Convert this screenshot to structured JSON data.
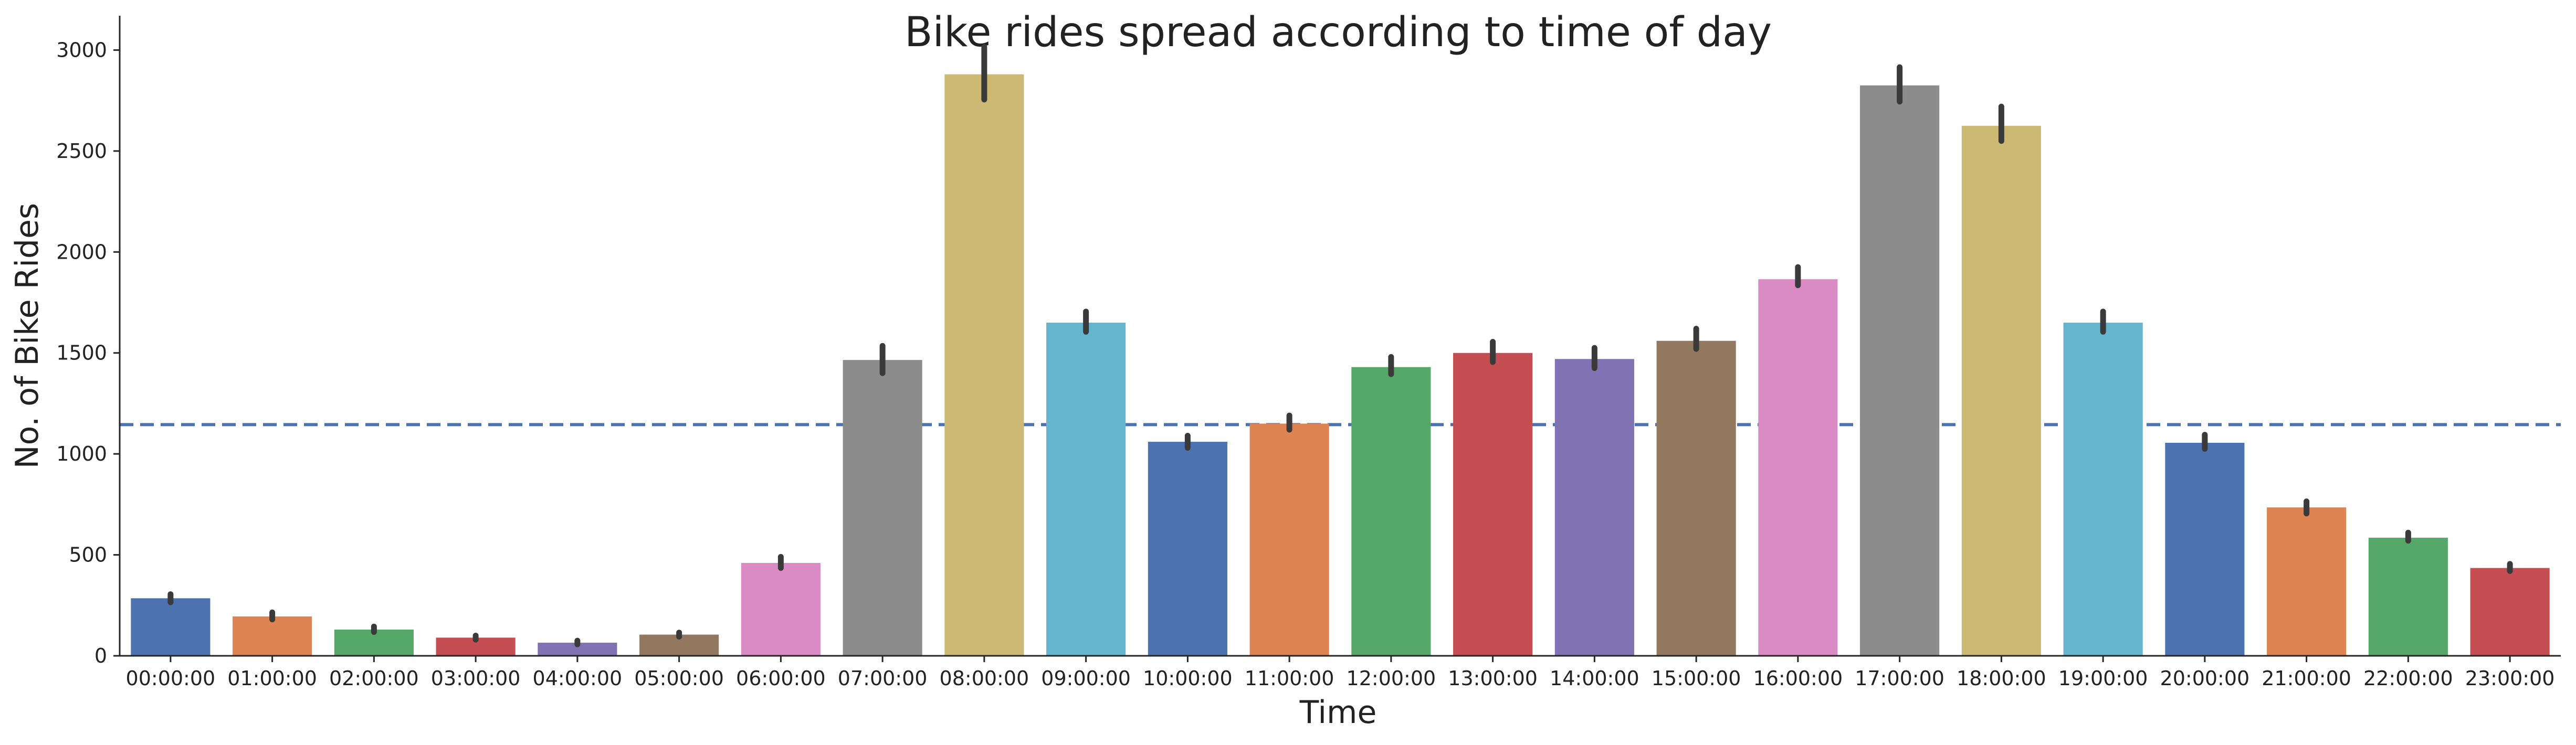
{
  "chart_data": {
    "type": "bar",
    "title": "Bike rides spread according to time of day",
    "xlabel": "Time",
    "ylabel": "No. of Bike Rides",
    "ylim": [
      0,
      3170
    ],
    "yticks": [
      0,
      500,
      1000,
      1500,
      2000,
      2500,
      3000
    ],
    "grid": false,
    "categories": [
      "00:00:00",
      "01:00:00",
      "02:00:00",
      "03:00:00",
      "04:00:00",
      "05:00:00",
      "06:00:00",
      "07:00:00",
      "08:00:00",
      "09:00:00",
      "10:00:00",
      "11:00:00",
      "12:00:00",
      "13:00:00",
      "14:00:00",
      "15:00:00",
      "16:00:00",
      "17:00:00",
      "18:00:00",
      "19:00:00",
      "20:00:00",
      "21:00:00",
      "22:00:00",
      "23:00:00"
    ],
    "values": [
      285,
      195,
      130,
      90,
      65,
      105,
      460,
      1465,
      2880,
      1650,
      1060,
      1150,
      1430,
      1500,
      1470,
      1560,
      1865,
      2825,
      2625,
      1650,
      1055,
      735,
      585,
      435
    ],
    "error_low": [
      265,
      180,
      118,
      80,
      57,
      95,
      435,
      1400,
      2755,
      1605,
      1030,
      1120,
      1395,
      1455,
      1425,
      1520,
      1835,
      2745,
      2550,
      1605,
      1025,
      705,
      570,
      420
    ],
    "error_high": [
      305,
      215,
      145,
      100,
      75,
      115,
      490,
      1535,
      3015,
      1705,
      1090,
      1190,
      1480,
      1555,
      1525,
      1620,
      1925,
      2915,
      2720,
      1705,
      1095,
      765,
      610,
      455
    ],
    "reference_line": {
      "y": 1145,
      "style": "dashed",
      "color": "#4c72b0"
    },
    "palette": [
      "#4c72b0",
      "#dd8452",
      "#55a868",
      "#c44e52",
      "#8172b3",
      "#937860",
      "#da8bc3",
      "#8c8c8c",
      "#ccb974",
      "#64b5cd"
    ],
    "error_color": "#3a3a3a",
    "axis_color": "#262626"
  }
}
